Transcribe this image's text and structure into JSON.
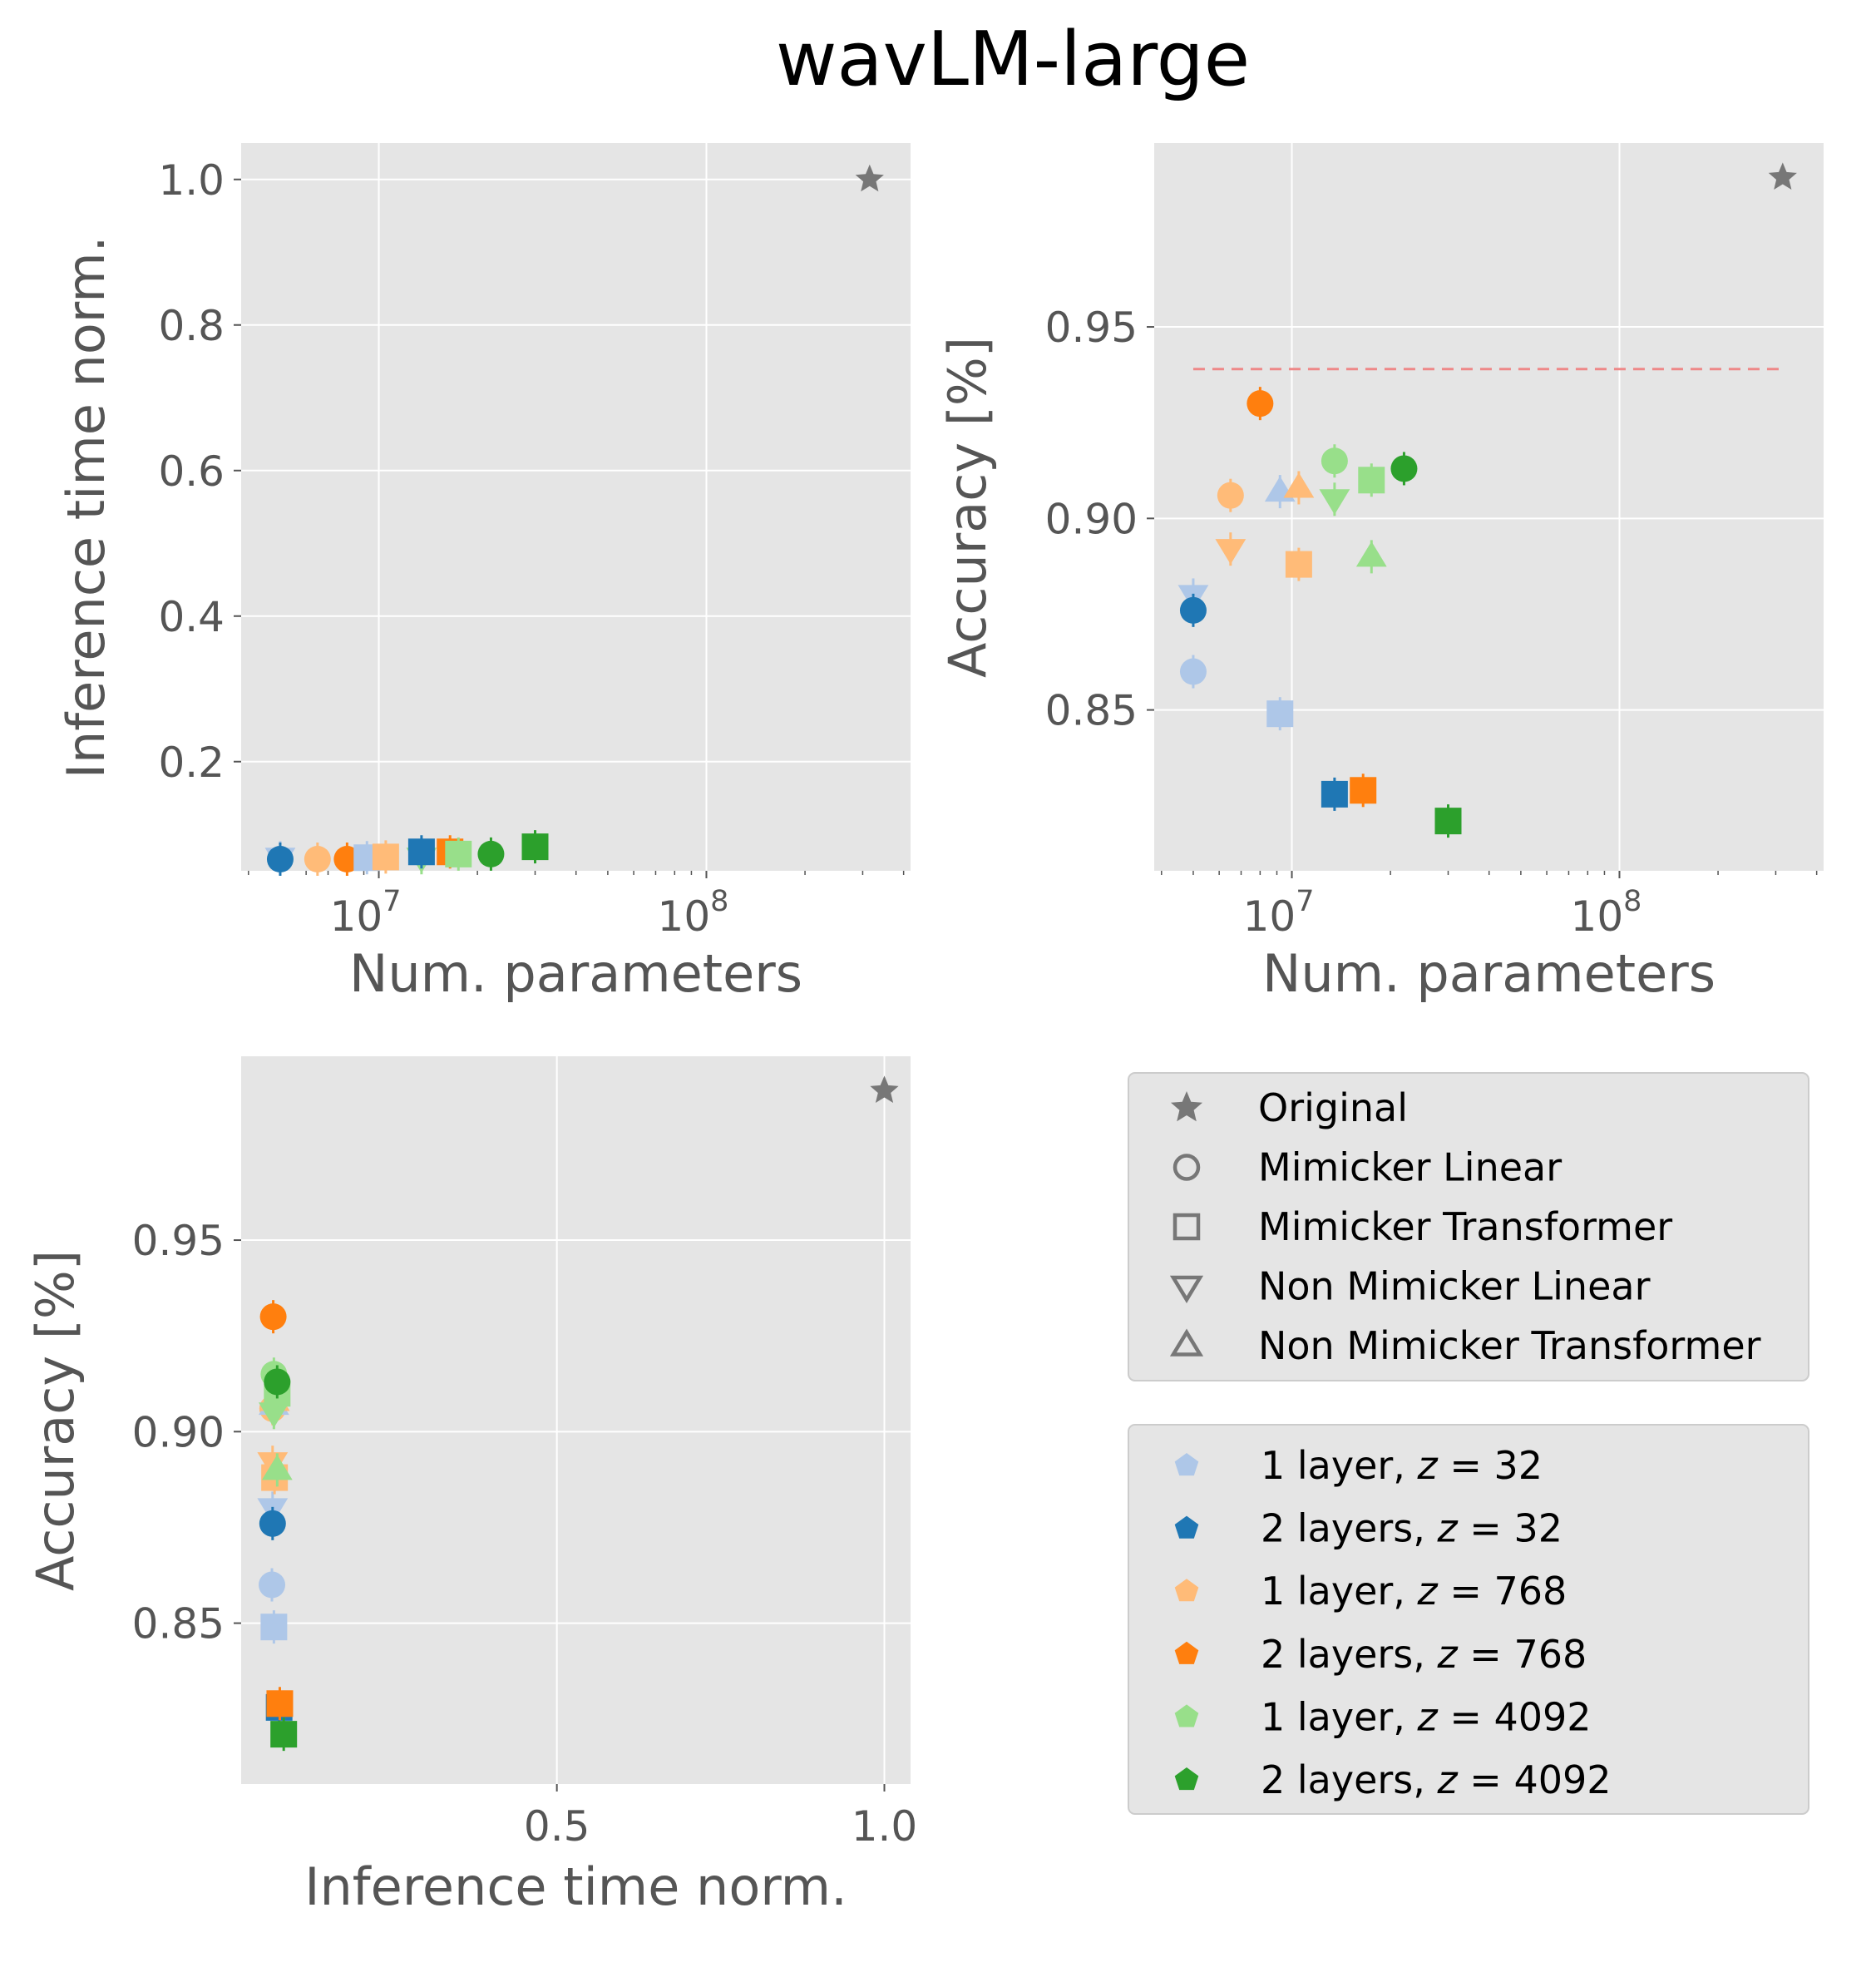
{
  "figure": {
    "title": "wavLM-large"
  },
  "colors": {
    "panel_bg": "#e5e5e5",
    "grid": "#ffffff",
    "tick_text": "#555555",
    "title_text": "#000000",
    "baseline": "#ee8888",
    "legend_bg": "#e5e5e5",
    "legend_border": "#cccccc",
    "legend_marker": "#777777"
  },
  "legend_markers": {
    "items": [
      {
        "label": "Original",
        "marker": "star"
      },
      {
        "label": "Mimicker Linear",
        "marker": "circle"
      },
      {
        "label": "Mimicker Transformer",
        "marker": "square"
      },
      {
        "label": "Non Mimicker Linear",
        "marker": "triangle-down"
      },
      {
        "label": "Non Mimicker Transformer",
        "marker": "triangle-up"
      }
    ]
  },
  "legend_configs": {
    "items": [
      {
        "label": "1 layer, ",
        "z": "32",
        "color": "#aec7e8"
      },
      {
        "label": "2 layers, ",
        "z": "32",
        "color": "#1f77b4"
      },
      {
        "label": "1 layer, ",
        "z": "768",
        "color": "#ffbb78"
      },
      {
        "label": "2 layers, ",
        "z": "768",
        "color": "#ff7f0e"
      },
      {
        "label": "1 layer, ",
        "z": "4092",
        "color": "#98df8a"
      },
      {
        "label": "2 layers, ",
        "z": "4092",
        "color": "#2ca02c"
      }
    ]
  },
  "chart_data": [
    {
      "type": "scatter",
      "title": "",
      "xlabel": "Num. parameters",
      "ylabel": "Inference time norm.",
      "xscale": "log",
      "xlim": [
        3800000,
        420000000
      ],
      "ylim": [
        0.05,
        1.05
      ],
      "xticks": [
        {
          "value": 10000000,
          "base": "10",
          "exp": "7"
        },
        {
          "value": 100000000,
          "base": "10",
          "exp": "8"
        }
      ],
      "yticks": [
        {
          "value": 0.2,
          "label": "0.2"
        },
        {
          "value": 0.4,
          "label": "0.4"
        },
        {
          "value": 0.6,
          "label": "0.6"
        },
        {
          "value": 0.8,
          "label": "0.8"
        },
        {
          "value": 1.0,
          "label": "1.0"
        }
      ],
      "points": [
        {
          "x": 5000000,
          "y": 0.068,
          "marker": "triangle-down",
          "color": "#aec7e8"
        },
        {
          "x": 5000000,
          "y": 0.066,
          "marker": "circle",
          "color": "#1f77b4"
        },
        {
          "x": 6500000,
          "y": 0.066,
          "marker": "circle",
          "color": "#ffbb78"
        },
        {
          "x": 8000000,
          "y": 0.066,
          "marker": "circle",
          "color": "#ff7f0e"
        },
        {
          "x": 9200000,
          "y": 0.068,
          "marker": "square",
          "color": "#aec7e8"
        },
        {
          "x": 10500000,
          "y": 0.069,
          "marker": "square",
          "color": "#ffbb78"
        },
        {
          "x": 13500000,
          "y": 0.068,
          "marker": "triangle-down",
          "color": "#98df8a"
        },
        {
          "x": 13500000,
          "y": 0.076,
          "marker": "square",
          "color": "#1f77b4"
        },
        {
          "x": 16500000,
          "y": 0.076,
          "marker": "square",
          "color": "#ff7f0e"
        },
        {
          "x": 17500000,
          "y": 0.073,
          "marker": "square",
          "color": "#98df8a"
        },
        {
          "x": 22000000,
          "y": 0.073,
          "marker": "circle",
          "color": "#2ca02c"
        },
        {
          "x": 30000000,
          "y": 0.083,
          "marker": "square",
          "color": "#2ca02c"
        },
        {
          "x": 315000000,
          "y": 1.0,
          "marker": "star",
          "color": "#777777"
        }
      ]
    },
    {
      "type": "scatter",
      "title": "",
      "xlabel": "Num. parameters",
      "ylabel": "Accuracy [%]",
      "xscale": "log",
      "xlim": [
        3800000,
        420000000
      ],
      "ylim": [
        0.808,
        0.998
      ],
      "xticks": [
        {
          "value": 10000000,
          "base": "10",
          "exp": "7"
        },
        {
          "value": 100000000,
          "base": "10",
          "exp": "8"
        }
      ],
      "yticks": [
        {
          "value": 0.85,
          "label": "0.85"
        },
        {
          "value": 0.9,
          "label": "0.90"
        },
        {
          "value": 0.95,
          "label": "0.95"
        }
      ],
      "baseline": {
        "y": 0.939,
        "x_from": 5000000,
        "x_to": 315000000
      },
      "points": [
        {
          "x": 5000000,
          "y": 0.86,
          "marker": "circle",
          "color": "#aec7e8"
        },
        {
          "x": 5000000,
          "y": 0.88,
          "marker": "triangle-down",
          "color": "#aec7e8"
        },
        {
          "x": 5000000,
          "y": 0.876,
          "marker": "circle",
          "color": "#1f77b4"
        },
        {
          "x": 6500000,
          "y": 0.906,
          "marker": "circle",
          "color": "#ffbb78"
        },
        {
          "x": 6500000,
          "y": 0.892,
          "marker": "triangle-down",
          "color": "#ffbb78"
        },
        {
          "x": 8000000,
          "y": 0.93,
          "marker": "circle",
          "color": "#ff7f0e"
        },
        {
          "x": 9200000,
          "y": 0.907,
          "marker": "triangle-up",
          "color": "#aec7e8"
        },
        {
          "x": 9200000,
          "y": 0.849,
          "marker": "square",
          "color": "#aec7e8"
        },
        {
          "x": 10500000,
          "y": 0.908,
          "marker": "triangle-up",
          "color": "#ffbb78"
        },
        {
          "x": 10500000,
          "y": 0.888,
          "marker": "square",
          "color": "#ffbb78"
        },
        {
          "x": 13500000,
          "y": 0.915,
          "marker": "circle",
          "color": "#98df8a"
        },
        {
          "x": 13500000,
          "y": 0.905,
          "marker": "triangle-down",
          "color": "#98df8a"
        },
        {
          "x": 13500000,
          "y": 0.828,
          "marker": "square",
          "color": "#1f77b4"
        },
        {
          "x": 16500000,
          "y": 0.829,
          "marker": "square",
          "color": "#ff7f0e"
        },
        {
          "x": 17500000,
          "y": 0.91,
          "marker": "square",
          "color": "#98df8a"
        },
        {
          "x": 17500000,
          "y": 0.89,
          "marker": "triangle-up",
          "color": "#98df8a"
        },
        {
          "x": 22000000,
          "y": 0.913,
          "marker": "circle",
          "color": "#2ca02c"
        },
        {
          "x": 30000000,
          "y": 0.821,
          "marker": "square",
          "color": "#2ca02c"
        },
        {
          "x": 315000000,
          "y": 0.989,
          "marker": "star",
          "color": "#777777"
        }
      ]
    },
    {
      "type": "scatter",
      "title": "",
      "xlabel": "Inference time norm.",
      "ylabel": "Accuracy [%]",
      "xscale": "linear",
      "xlim": [
        0.018,
        1.04
      ],
      "ylim": [
        0.808,
        0.998
      ],
      "xticks": [
        {
          "value": 0.5,
          "label": "0.5"
        },
        {
          "value": 1.0,
          "label": "1.0"
        }
      ],
      "yticks": [
        {
          "value": 0.85,
          "label": "0.85"
        },
        {
          "value": 0.9,
          "label": "0.90"
        },
        {
          "value": 0.95,
          "label": "0.95"
        }
      ],
      "points": [
        {
          "x": 0.065,
          "y": 0.86,
          "marker": "circle",
          "color": "#aec7e8"
        },
        {
          "x": 0.066,
          "y": 0.88,
          "marker": "triangle-down",
          "color": "#aec7e8"
        },
        {
          "x": 0.066,
          "y": 0.876,
          "marker": "circle",
          "color": "#1f77b4"
        },
        {
          "x": 0.066,
          "y": 0.906,
          "marker": "circle",
          "color": "#ffbb78"
        },
        {
          "x": 0.066,
          "y": 0.892,
          "marker": "triangle-down",
          "color": "#ffbb78"
        },
        {
          "x": 0.067,
          "y": 0.93,
          "marker": "circle",
          "color": "#ff7f0e"
        },
        {
          "x": 0.068,
          "y": 0.849,
          "marker": "square",
          "color": "#aec7e8"
        },
        {
          "x": 0.068,
          "y": 0.907,
          "marker": "triangle-up",
          "color": "#aec7e8"
        },
        {
          "x": 0.069,
          "y": 0.908,
          "marker": "triangle-up",
          "color": "#ffbb78"
        },
        {
          "x": 0.069,
          "y": 0.888,
          "marker": "square",
          "color": "#ffbb78"
        },
        {
          "x": 0.068,
          "y": 0.915,
          "marker": "circle",
          "color": "#98df8a"
        },
        {
          "x": 0.068,
          "y": 0.905,
          "marker": "triangle-down",
          "color": "#98df8a"
        },
        {
          "x": 0.073,
          "y": 0.91,
          "marker": "square",
          "color": "#98df8a"
        },
        {
          "x": 0.073,
          "y": 0.89,
          "marker": "triangle-up",
          "color": "#98df8a"
        },
        {
          "x": 0.073,
          "y": 0.913,
          "marker": "circle",
          "color": "#2ca02c"
        },
        {
          "x": 0.076,
          "y": 0.828,
          "marker": "square",
          "color": "#1f77b4"
        },
        {
          "x": 0.077,
          "y": 0.829,
          "marker": "square",
          "color": "#ff7f0e"
        },
        {
          "x": 0.083,
          "y": 0.821,
          "marker": "square",
          "color": "#2ca02c"
        },
        {
          "x": 1.0,
          "y": 0.989,
          "marker": "star",
          "color": "#777777"
        }
      ]
    }
  ]
}
